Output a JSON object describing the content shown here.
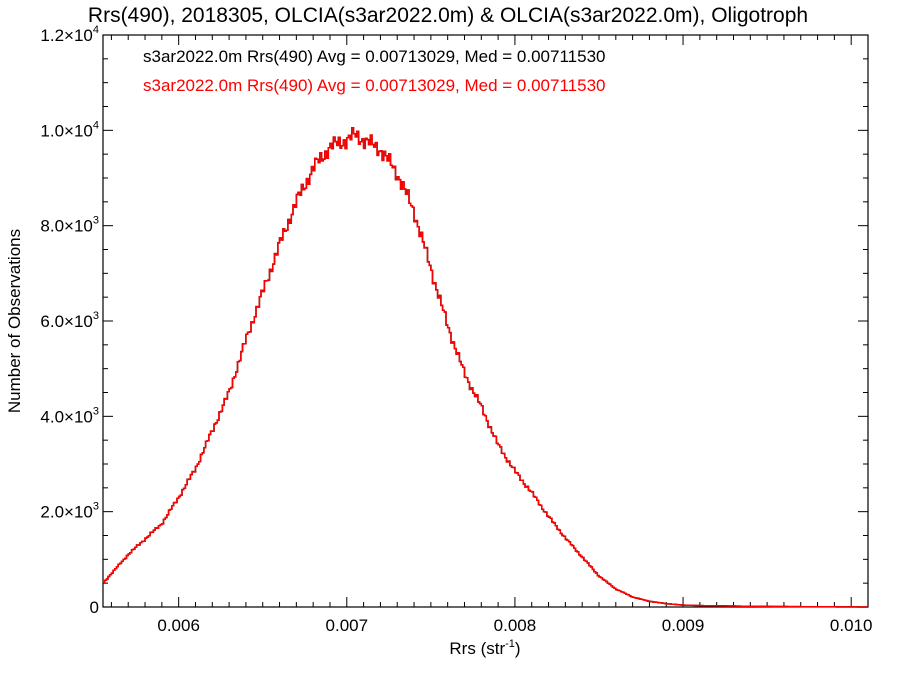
{
  "chart_data": {
    "type": "histogram",
    "title": "Rrs(490), 2018305, OLCIA(s3ar2022.0m) & OLCIA(s3ar2022.0m), Oligotroph",
    "xlabel": "Rrs (str",
    "xlabel_sup": "-1",
    "xlabel_close": ")",
    "ylabel": "Number of Observations",
    "xlim": [
      0.00555,
      0.0101
    ],
    "ylim": [
      0,
      12000
    ],
    "x_ticks": [
      {
        "value": 0.006,
        "label": "0.006"
      },
      {
        "value": 0.007,
        "label": "0.007"
      },
      {
        "value": 0.008,
        "label": "0.008"
      },
      {
        "value": 0.009,
        "label": "0.009"
      },
      {
        "value": 0.01,
        "label": "0.010"
      }
    ],
    "y_ticks": [
      {
        "value": 0,
        "label": "0",
        "sup": ""
      },
      {
        "value": 2000,
        "label": "2.0×10",
        "sup": "3"
      },
      {
        "value": 4000,
        "label": "4.0×10",
        "sup": "3"
      },
      {
        "value": 6000,
        "label": "6.0×10",
        "sup": "3"
      },
      {
        "value": 8000,
        "label": "8.0×10",
        "sup": "3"
      },
      {
        "value": 10000,
        "label": "1.0×10",
        "sup": "4"
      },
      {
        "value": 12000,
        "label": "1.2×10",
        "sup": "4"
      }
    ],
    "grid": false,
    "legend_position": "top-left",
    "series": [
      {
        "name": "s3ar2022.0m Rrs(490) Avg = 0.00713029, Med = 0.00711530",
        "color": "#000000"
      },
      {
        "name": "s3ar2022.0m Rrs(490) Avg = 0.00713029, Med = 0.00711530",
        "color": "#ff0000"
      }
    ],
    "x": [
      0.00555,
      0.0057,
      0.0059,
      0.006,
      0.0061,
      0.0062,
      0.0063,
      0.0064,
      0.0065,
      0.0066,
      0.0067,
      0.0068,
      0.0069,
      0.007,
      0.00705,
      0.0071,
      0.0072,
      0.0073,
      0.0074,
      0.0075,
      0.0076,
      0.0077,
      0.0078,
      0.0079,
      0.008,
      0.0081,
      0.0082,
      0.0083,
      0.0084,
      0.0085,
      0.0086,
      0.0087,
      0.0088,
      0.0089,
      0.009,
      0.0091,
      0.0092,
      0.0094,
      0.0096,
      0.0098,
      0.0101
    ],
    "values": [
      500,
      1100,
      1750,
      2300,
      2900,
      3700,
      4500,
      5600,
      6600,
      7600,
      8500,
      9200,
      9650,
      9800,
      9900,
      9800,
      9600,
      9100,
      8300,
      7100,
      5900,
      4900,
      4200,
      3400,
      2850,
      2400,
      1900,
      1450,
      1050,
      650,
      380,
      210,
      120,
      70,
      40,
      30,
      25,
      15,
      10,
      5,
      0
    ]
  }
}
